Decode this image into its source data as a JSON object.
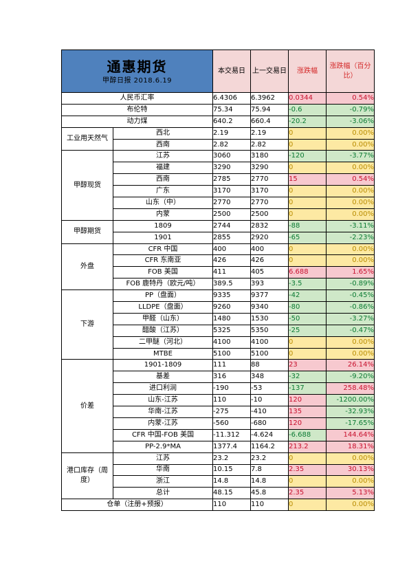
{
  "header": {
    "title": "通惠期货",
    "subtitle": "甲醇日报 2018.6.19",
    "col_current": "本交易日",
    "col_prev": "上一交易日",
    "col_change": "涨跌幅",
    "col_change_pct": "涨跌幅（百分比）"
  },
  "colors": {
    "up": "#c8102e",
    "down": "#0a7a32",
    "flat": "#b98d00",
    "header_bg": "#4f81bd"
  },
  "sections": {
    "industrial_gas": "工业用天然气",
    "spot": "甲醇现货",
    "futures": "甲醇期货",
    "external": "外盘",
    "downstream": "下游",
    "spread": "价差",
    "port_stock": "港口库存（周度）"
  },
  "rows": [
    {
      "label": "人民币汇率",
      "cur": "6.4306",
      "prev": "6.3962",
      "chg": "0.0344",
      "pct": "0.54%",
      "dir": "up"
    },
    {
      "label": "布伦特",
      "cur": "75.34",
      "prev": "75.94",
      "chg": "-0.6",
      "pct": "-0.79%",
      "dir": "down"
    },
    {
      "label": "动力煤",
      "cur": "640.2",
      "prev": "660.4",
      "chg": "-20.2",
      "pct": "-3.06%",
      "dir": "down"
    },
    {
      "label": "西北",
      "cur": "2.19",
      "prev": "2.19",
      "chg": "0",
      "pct": "0.00%",
      "dir": "flat"
    },
    {
      "label": "西南",
      "cur": "2.82",
      "prev": "2.82",
      "chg": "0",
      "pct": "0.00%",
      "dir": "flat"
    },
    {
      "label": "江苏",
      "cur": "3060",
      "prev": "3180",
      "chg": "-120",
      "pct": "-3.77%",
      "dir": "down"
    },
    {
      "label": "福建",
      "cur": "3290",
      "prev": "3290",
      "chg": "0",
      "pct": "0.00%",
      "dir": "flat"
    },
    {
      "label": "西南",
      "cur": "2785",
      "prev": "2770",
      "chg": "15",
      "pct": "0.54%",
      "dir": "up"
    },
    {
      "label": "广东",
      "cur": "3170",
      "prev": "3170",
      "chg": "0",
      "pct": "0.00%",
      "dir": "flat"
    },
    {
      "label": "山东（中）",
      "cur": "2770",
      "prev": "2770",
      "chg": "0",
      "pct": "0.00%",
      "dir": "flat"
    },
    {
      "label": "内蒙",
      "cur": "2500",
      "prev": "2500",
      "chg": "0",
      "pct": "0.00%",
      "dir": "flat"
    },
    {
      "label": "1809",
      "cur": "2744",
      "prev": "2832",
      "chg": "-88",
      "pct": "-3.11%",
      "dir": "down"
    },
    {
      "label": "1901",
      "cur": "2855",
      "prev": "2920",
      "chg": "-65",
      "pct": "-2.23%",
      "dir": "down"
    },
    {
      "label": "CFR 中国",
      "cur": "400",
      "prev": "400",
      "chg": "0",
      "pct": "0.00%",
      "dir": "flat"
    },
    {
      "label": "CFR 东南亚",
      "cur": "426",
      "prev": "426",
      "chg": "0",
      "pct": "0.00%",
      "dir": "flat"
    },
    {
      "label": "FOB 美国",
      "cur": "411",
      "prev": "405",
      "chg": "6.688",
      "pct": "1.65%",
      "dir": "up"
    },
    {
      "label": "FOB 鹿特丹（欧元/吨）",
      "cur": "389.5",
      "prev": "393",
      "chg": "-3.5",
      "pct": "-0.89%",
      "dir": "down"
    },
    {
      "label": "PP（盘面）",
      "cur": "9335",
      "prev": "9377",
      "chg": "-42",
      "pct": "-0.45%",
      "dir": "down"
    },
    {
      "label": "LLDPE（盘面）",
      "cur": "9260",
      "prev": "9340",
      "chg": "-80",
      "pct": "-0.86%",
      "dir": "down"
    },
    {
      "label": "甲醛（山东）",
      "cur": "1480",
      "prev": "1530",
      "chg": "-50",
      "pct": "-3.27%",
      "dir": "down"
    },
    {
      "label": "醋酸（江苏）",
      "cur": "5325",
      "prev": "5350",
      "chg": "-25",
      "pct": "-0.47%",
      "dir": "down"
    },
    {
      "label": "二甲醚（河北）",
      "cur": "4100",
      "prev": "4100",
      "chg": "0",
      "pct": "0.00%",
      "dir": "flat"
    },
    {
      "label": "MTBE",
      "cur": "5100",
      "prev": "5100",
      "chg": "0",
      "pct": "0.00%",
      "dir": "flat"
    },
    {
      "label": "1901-1809",
      "cur": "111",
      "prev": "88",
      "chg": "23",
      "pct": "26.14%",
      "dir": "up"
    },
    {
      "label": "基差",
      "cur": "316",
      "prev": "348",
      "chg": "-32",
      "pct": "-9.20%",
      "dir": "down"
    },
    {
      "label": "进口利润",
      "cur": "-190",
      "prev": "-53",
      "chg": "-137",
      "pct": "258.48%",
      "dir": "downup"
    },
    {
      "label": "山东-江苏",
      "cur": "110",
      "prev": "-10",
      "chg": "120",
      "pct": "-1200.00%",
      "dir": "updown"
    },
    {
      "label": "华南-江苏",
      "cur": "-275",
      "prev": "-410",
      "chg": "135",
      "pct": "-32.93%",
      "dir": "updown"
    },
    {
      "label": "内蒙-江苏",
      "cur": "-560",
      "prev": "-680",
      "chg": "120",
      "pct": "-17.65%",
      "dir": "updown"
    },
    {
      "label": "CFR 中国-FOB 美国",
      "cur": "-11.312",
      "prev": "-4.624",
      "chg": "-6.688",
      "pct": "144.64%",
      "dir": "downup"
    },
    {
      "label": "PP-2.9*MA",
      "cur": "1377.4",
      "prev": "1164.2",
      "chg": "213.2",
      "pct": "18.31%",
      "dir": "up"
    },
    {
      "label": "江苏",
      "cur": "23.2",
      "prev": "23.2",
      "chg": "0",
      "pct": "0.00%",
      "dir": "flat"
    },
    {
      "label": "华南",
      "cur": "10.15",
      "prev": "7.8",
      "chg": "2.35",
      "pct": "30.13%",
      "dir": "up"
    },
    {
      "label": "浙江",
      "cur": "14.8",
      "prev": "14.8",
      "chg": "0",
      "pct": "0.00%",
      "dir": "flat"
    },
    {
      "label": "总计",
      "cur": "48.15",
      "prev": "45.8",
      "chg": "2.35",
      "pct": "5.13%",
      "dir": "up"
    },
    {
      "label": "仓单（注册+预报）",
      "cur": "110",
      "prev": "110",
      "chg": "0",
      "pct": "0.00%",
      "dir": "flat"
    }
  ]
}
